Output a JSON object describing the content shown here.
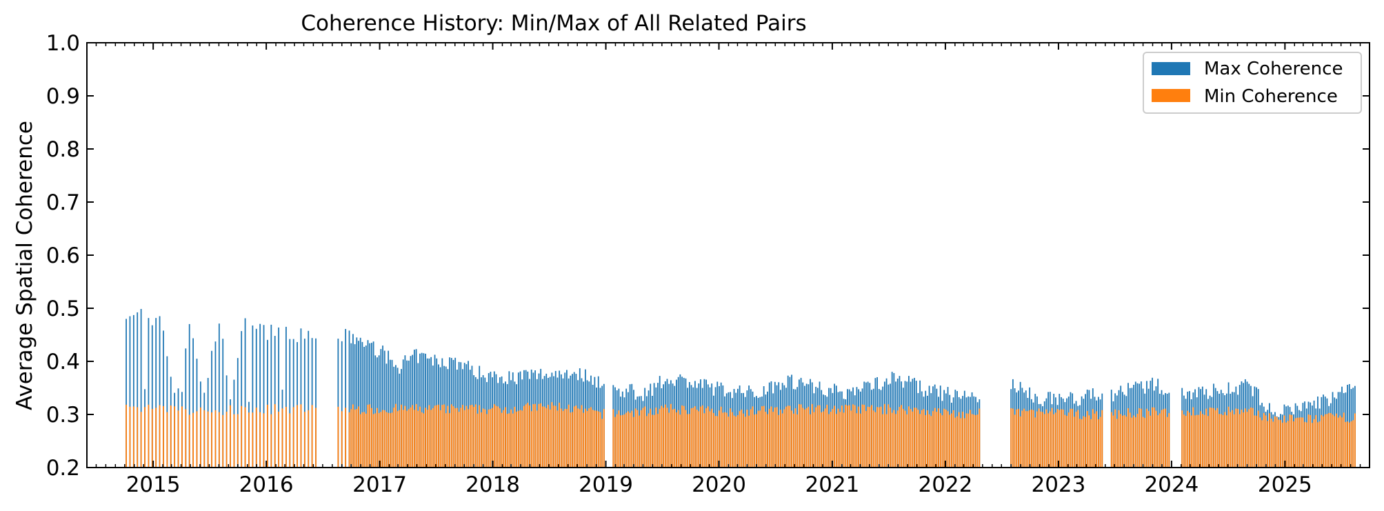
{
  "chart_data": {
    "type": "bar",
    "title": "Coherence History: Min/Max of All Related Pairs",
    "xlabel": "",
    "ylabel": "Average Spatial Coherence",
    "ylim": [
      0.2,
      1.0
    ],
    "yticks": [
      "0.2",
      "0.3",
      "0.4",
      "0.5",
      "0.6",
      "0.7",
      "0.8",
      "0.9",
      "1.0"
    ],
    "xlim": [
      "2014-06-01",
      "2025-10-01"
    ],
    "xticks": [
      "2015",
      "2016",
      "2017",
      "2018",
      "2019",
      "2020",
      "2021",
      "2022",
      "2023",
      "2024",
      "2025"
    ],
    "legend_position": "top-right",
    "grid": false,
    "colors": {
      "max": "#1f77b4",
      "min": "#ff7f0e"
    },
    "series": [
      {
        "name": "Max Coherence",
        "anchors": [
          [
            "2014-10-06",
            0.495
          ],
          [
            "2014-11-20",
            0.49
          ],
          [
            "2015-02-01",
            0.47
          ],
          [
            "2015-03-15",
            0.32
          ],
          [
            "2015-05-01",
            0.48
          ],
          [
            "2015-06-15",
            0.33
          ],
          [
            "2015-08-01",
            0.48
          ],
          [
            "2015-09-10",
            0.33
          ],
          [
            "2015-10-20",
            0.47
          ],
          [
            "2016-01-01",
            0.455
          ],
          [
            "2016-03-01",
            0.46
          ],
          [
            "2016-05-01",
            0.445
          ],
          [
            "2016-07-15",
            0.45
          ],
          [
            "2016-10-01",
            0.445
          ],
          [
            "2017-01-01",
            0.42
          ],
          [
            "2017-03-01",
            0.39
          ],
          [
            "2017-05-01",
            0.41
          ],
          [
            "2017-07-01",
            0.4
          ],
          [
            "2017-09-01",
            0.4
          ],
          [
            "2017-12-01",
            0.375
          ],
          [
            "2018-03-01",
            0.37
          ],
          [
            "2018-06-01",
            0.375
          ],
          [
            "2018-09-01",
            0.38
          ],
          [
            "2018-11-20",
            0.37
          ],
          [
            "2019-01-01",
            0.35
          ],
          [
            "2019-05-01",
            0.34
          ],
          [
            "2019-08-01",
            0.37
          ],
          [
            "2019-11-01",
            0.355
          ],
          [
            "2020-02-01",
            0.345
          ],
          [
            "2020-05-01",
            0.34
          ],
          [
            "2020-08-01",
            0.365
          ],
          [
            "2020-11-01",
            0.355
          ],
          [
            "2021-02-01",
            0.34
          ],
          [
            "2021-05-01",
            0.355
          ],
          [
            "2021-08-01",
            0.37
          ],
          [
            "2021-11-01",
            0.345
          ],
          [
            "2022-02-01",
            0.335
          ],
          [
            "2022-05-01",
            0.335
          ],
          [
            "2022-08-01",
            0.355
          ],
          [
            "2022-11-01",
            0.33
          ],
          [
            "2023-03-01",
            0.33
          ],
          [
            "2023-07-01",
            0.34
          ],
          [
            "2023-11-01",
            0.355
          ],
          [
            "2024-03-01",
            0.34
          ],
          [
            "2024-06-01",
            0.345
          ],
          [
            "2024-09-01",
            0.355
          ],
          [
            "2024-12-01",
            0.3
          ],
          [
            "2025-03-01",
            0.315
          ],
          [
            "2025-06-01",
            0.33
          ],
          [
            "2025-08-10",
            0.35
          ]
        ]
      },
      {
        "name": "Min Coherence",
        "anchors": [
          [
            "2014-10-06",
            0.31
          ],
          [
            "2015-01-01",
            0.31
          ],
          [
            "2015-06-01",
            0.305
          ],
          [
            "2016-01-01",
            0.31
          ],
          [
            "2016-08-01",
            0.31
          ],
          [
            "2017-01-01",
            0.31
          ],
          [
            "2018-01-01",
            0.31
          ],
          [
            "2018-08-01",
            0.315
          ],
          [
            "2019-01-01",
            0.3
          ],
          [
            "2019-08-01",
            0.31
          ],
          [
            "2020-03-01",
            0.305
          ],
          [
            "2020-09-01",
            0.31
          ],
          [
            "2021-03-01",
            0.31
          ],
          [
            "2021-09-01",
            0.31
          ],
          [
            "2022-03-01",
            0.3
          ],
          [
            "2022-09-01",
            0.305
          ],
          [
            "2023-05-01",
            0.3
          ],
          [
            "2024-01-01",
            0.305
          ],
          [
            "2024-09-01",
            0.305
          ],
          [
            "2025-01-01",
            0.29
          ],
          [
            "2025-08-10",
            0.295
          ]
        ]
      }
    ],
    "gaps": [
      [
        "2016-06-15",
        "2016-08-10"
      ],
      [
        "2018-12-25",
        "2019-01-15"
      ],
      [
        "2022-04-20",
        "2022-07-25"
      ],
      [
        "2023-05-20",
        "2023-06-20"
      ],
      [
        "2023-12-20",
        "2024-01-25"
      ]
    ]
  }
}
